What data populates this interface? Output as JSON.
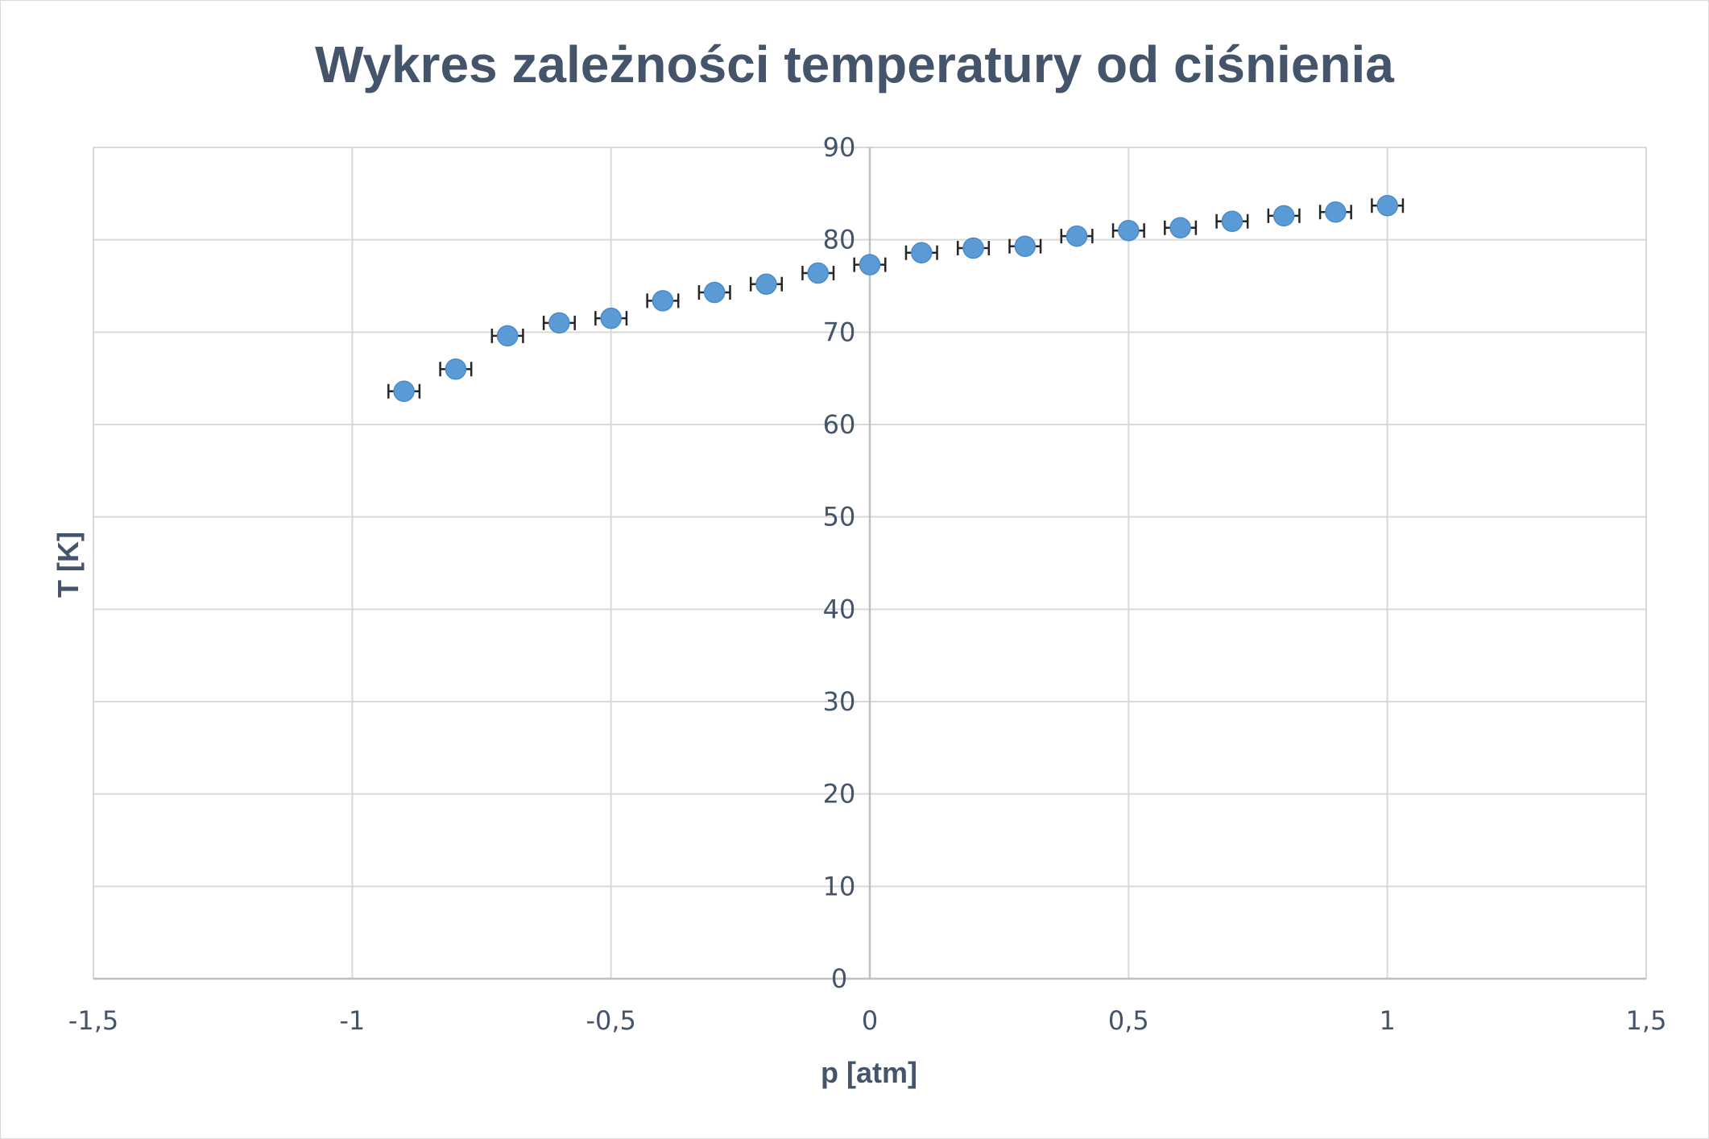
{
  "chart_data": {
    "type": "scatter",
    "title": "Wykres zależności temperatury od ciśnienia",
    "xlabel": "p [atm]",
    "ylabel": "T [K]",
    "xlim": [
      -1.5,
      1.5
    ],
    "ylim": [
      0,
      90
    ],
    "x_ticks": [
      -1.5,
      -1,
      -0.5,
      0,
      0.5,
      1,
      1.5
    ],
    "x_tick_labels": [
      "-1,5",
      "-1",
      "-0,5",
      "0",
      "0,5",
      "1",
      "1,5"
    ],
    "y_ticks": [
      0,
      10,
      20,
      30,
      40,
      50,
      60,
      70,
      80,
      90
    ],
    "y_tick_labels": [
      "0",
      "10",
      "20",
      "30",
      "40",
      "50",
      "60",
      "70",
      "80",
      "90"
    ],
    "grid": true,
    "legend": "none",
    "x_error": 0.03,
    "series": [
      {
        "x": [
          -0.9,
          -0.8,
          -0.7,
          -0.6,
          -0.5,
          -0.4,
          -0.3,
          -0.2,
          -0.1,
          0,
          0.1,
          0.2,
          0.3,
          0.4,
          0.5,
          0.6,
          0.7,
          0.8,
          0.9,
          1
        ],
        "y": [
          63.6,
          66.0,
          69.6,
          71.0,
          71.5,
          73.4,
          74.3,
          75.2,
          76.4,
          77.3,
          78.6,
          79.1,
          79.3,
          80.4,
          81.0,
          81.3,
          82.0,
          82.6,
          83.0,
          83.7
        ]
      }
    ],
    "colors": {
      "marker": "#5b9bd5",
      "error_bar": "#262626",
      "grid": "#d9d9d9",
      "axis": "#bfbfbf",
      "text": "#44546a"
    }
  }
}
